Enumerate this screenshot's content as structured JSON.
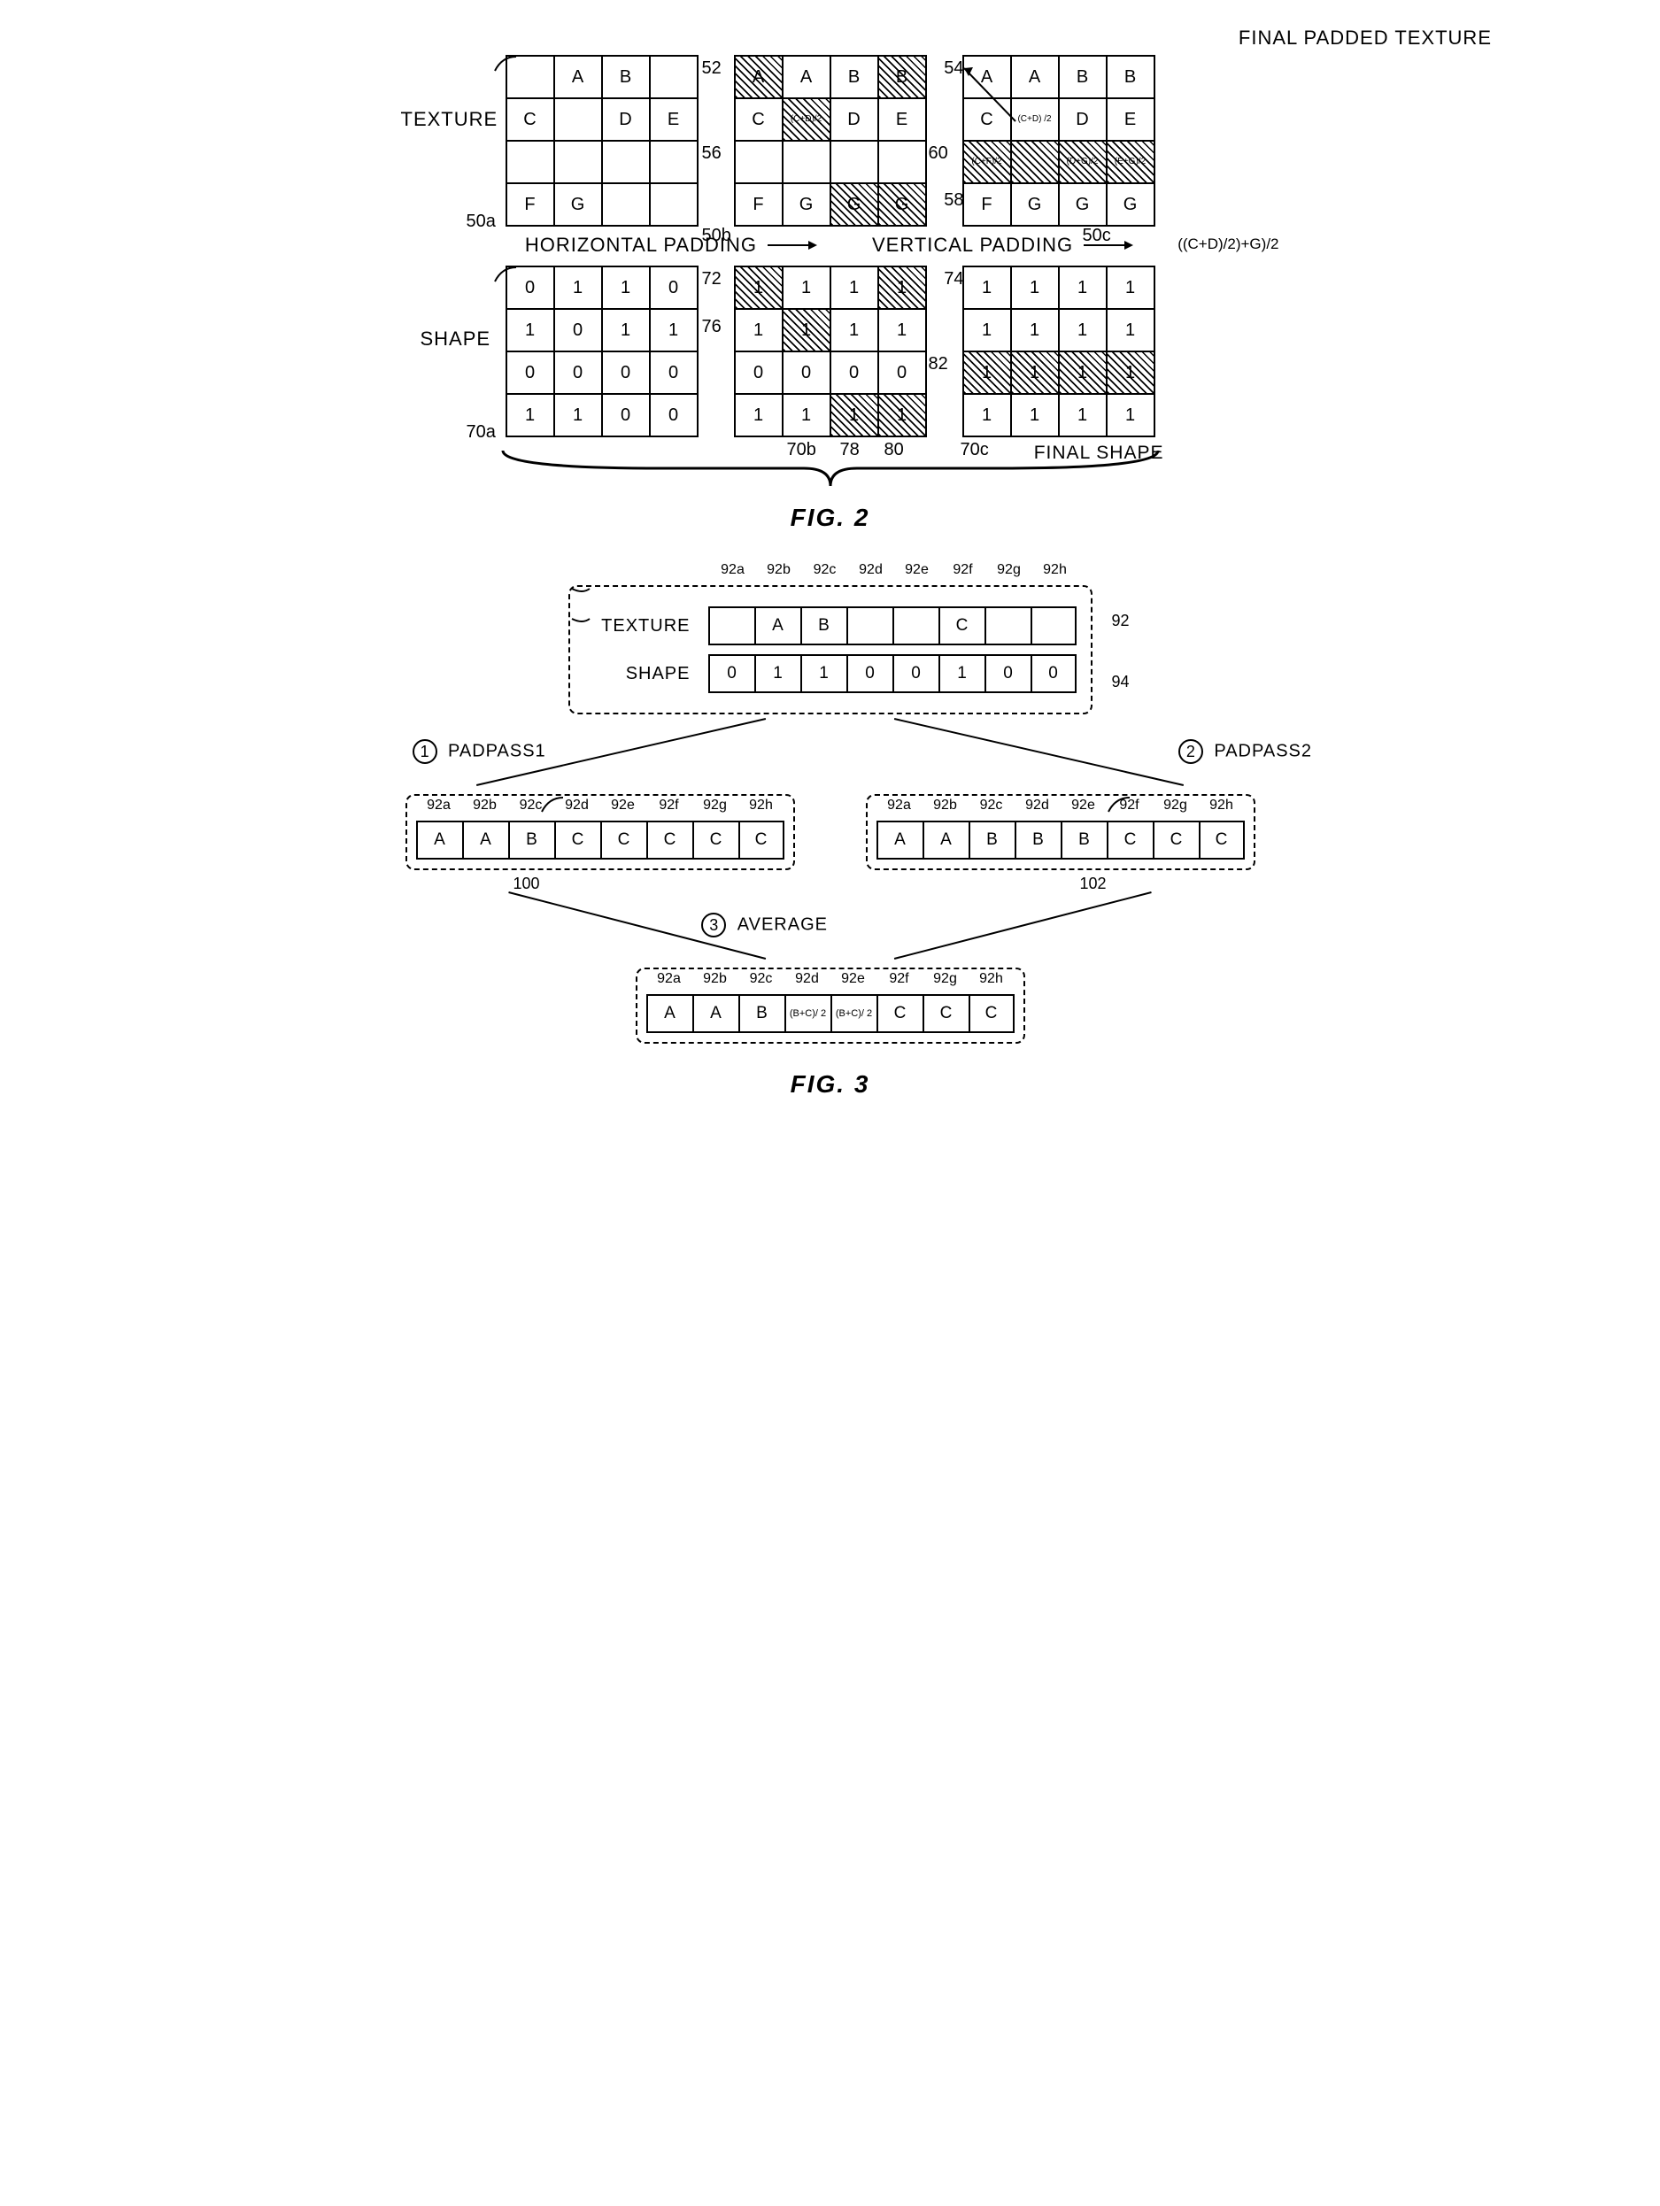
{
  "fig2": {
    "title_top": "FINAL PADDED TEXTURE",
    "texture_label": "TEXTURE",
    "shape_label": "SHAPE",
    "final_shape_label": "FINAL SHAPE",
    "hpad_label": "HORIZONTAL PADDING",
    "vpad_label": "VERTICAL PADDING",
    "caption": "FIG. 2",
    "formula_annotation": "((C+D)/2)+G)/2",
    "refs": {
      "r50a": "50a",
      "r50b": "50b",
      "r50c": "50c",
      "r52": "52",
      "r54": "54",
      "r56": "56",
      "r58": "58",
      "r60": "60",
      "r70a": "70a",
      "r70b": "70b",
      "r70c": "70c",
      "r72": "72",
      "r74": "74",
      "r76": "76",
      "r78": "78",
      "r80": "80",
      "r82": "82"
    },
    "texture_grids": {
      "g50a": [
        [
          "",
          "A",
          "B",
          ""
        ],
        [
          "C",
          "",
          "D",
          "E"
        ],
        [
          "",
          "",
          "",
          ""
        ],
        [
          "F",
          "G",
          "",
          ""
        ]
      ],
      "g50b": {
        "values": [
          [
            "A",
            "A",
            "B",
            "B"
          ],
          [
            "C",
            "(C+D)/2",
            "D",
            "E"
          ],
          [
            "",
            "",
            "",
            ""
          ],
          [
            "F",
            "G",
            "G",
            "G"
          ]
        ],
        "hatched": [
          [
            0,
            0
          ],
          [
            0,
            3
          ],
          [
            1,
            1
          ],
          [
            3,
            2
          ],
          [
            3,
            3
          ]
        ],
        "small": [
          [
            1,
            1
          ]
        ]
      },
      "g50c": {
        "values": [
          [
            "A",
            "A",
            "B",
            "B"
          ],
          [
            "C",
            "(C+D) /2",
            "D",
            "E"
          ],
          [
            "(C+F)/2",
            "",
            "(D+G)/2",
            "(E+G)/2"
          ],
          [
            "F",
            "G",
            "G",
            "G"
          ]
        ],
        "hatched": [
          [
            2,
            0
          ],
          [
            2,
            1
          ],
          [
            2,
            2
          ],
          [
            2,
            3
          ]
        ],
        "small": [
          [
            1,
            1
          ],
          [
            2,
            0
          ],
          [
            2,
            2
          ],
          [
            2,
            3
          ]
        ]
      }
    },
    "shape_grids": {
      "g70a": [
        [
          "0",
          "1",
          "1",
          "0"
        ],
        [
          "1",
          "0",
          "1",
          "1"
        ],
        [
          "0",
          "0",
          "0",
          "0"
        ],
        [
          "1",
          "1",
          "0",
          "0"
        ]
      ],
      "g70b": {
        "values": [
          [
            "1",
            "1",
            "1",
            "1"
          ],
          [
            "1",
            "1",
            "1",
            "1"
          ],
          [
            "0",
            "0",
            "0",
            "0"
          ],
          [
            "1",
            "1",
            "1",
            "1"
          ]
        ],
        "hatched": [
          [
            0,
            0
          ],
          [
            0,
            3
          ],
          [
            1,
            1
          ],
          [
            3,
            2
          ],
          [
            3,
            3
          ]
        ]
      },
      "g70c": {
        "values": [
          [
            "1",
            "1",
            "1",
            "1"
          ],
          [
            "1",
            "1",
            "1",
            "1"
          ],
          [
            "1",
            "1",
            "1",
            "1"
          ],
          [
            "1",
            "1",
            "1",
            "1"
          ]
        ],
        "hatched": [
          [
            2,
            0
          ],
          [
            2,
            1
          ],
          [
            2,
            2
          ],
          [
            2,
            3
          ]
        ]
      }
    }
  },
  "fig3": {
    "col_labels": [
      "92a",
      "92b",
      "92c",
      "92d",
      "92e",
      "92f",
      "92g",
      "92h"
    ],
    "texture_label": "TEXTURE",
    "shape_label": "SHAPE",
    "texture_cells": [
      "",
      "A",
      "B",
      "",
      "",
      "C",
      "",
      ""
    ],
    "shape_cells": [
      "0",
      "1",
      "1",
      "0",
      "0",
      "1",
      "0",
      "0"
    ],
    "ref92": "92",
    "ref94": "94",
    "padpass1": "PADPASS1",
    "padpass2": "PADPASS2",
    "average": "AVERAGE",
    "num1": "1",
    "num2": "2",
    "num3": "3",
    "row100": [
      "A",
      "A",
      "B",
      "C",
      "C",
      "C",
      "C",
      "C"
    ],
    "row102": [
      "A",
      "A",
      "B",
      "B",
      "B",
      "C",
      "C",
      "C"
    ],
    "ref100": "100",
    "ref102": "102",
    "row_avg": [
      "A",
      "A",
      "B",
      "(B+C)/ 2",
      "(B+C)/ 2",
      "C",
      "C",
      "C"
    ],
    "avg_small": [
      3,
      4
    ],
    "caption": "FIG. 3"
  },
  "colors": {
    "bg": "#ffffff",
    "line": "#000000"
  }
}
